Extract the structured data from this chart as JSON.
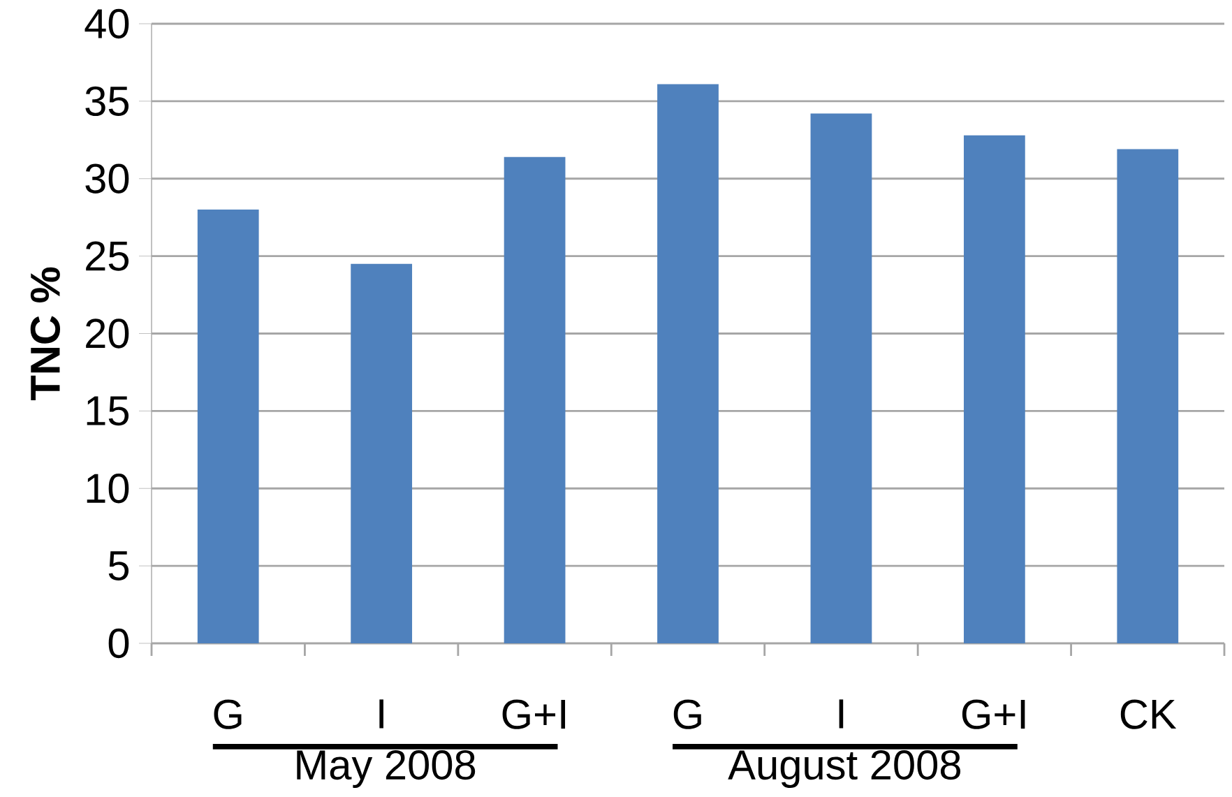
{
  "chart_data": {
    "type": "bar",
    "ylabel": "**TNC %**",
    "categories": [
      "G",
      "I",
      "G+I",
      "G",
      "I",
      "G+I",
      "CK"
    ],
    "values": [
      28.0,
      24.5,
      31.4,
      36.1,
      34.2,
      32.8,
      31.9
    ],
    "color": "#4f81bd",
    "ylim": [
      0,
      40
    ],
    "yticks": [
      0,
      5,
      10,
      15,
      20,
      25,
      30,
      35,
      40
    ],
    "grid": "y",
    "annotations": [
      "May 2008",
      "August 2008"
    ]
  }
}
